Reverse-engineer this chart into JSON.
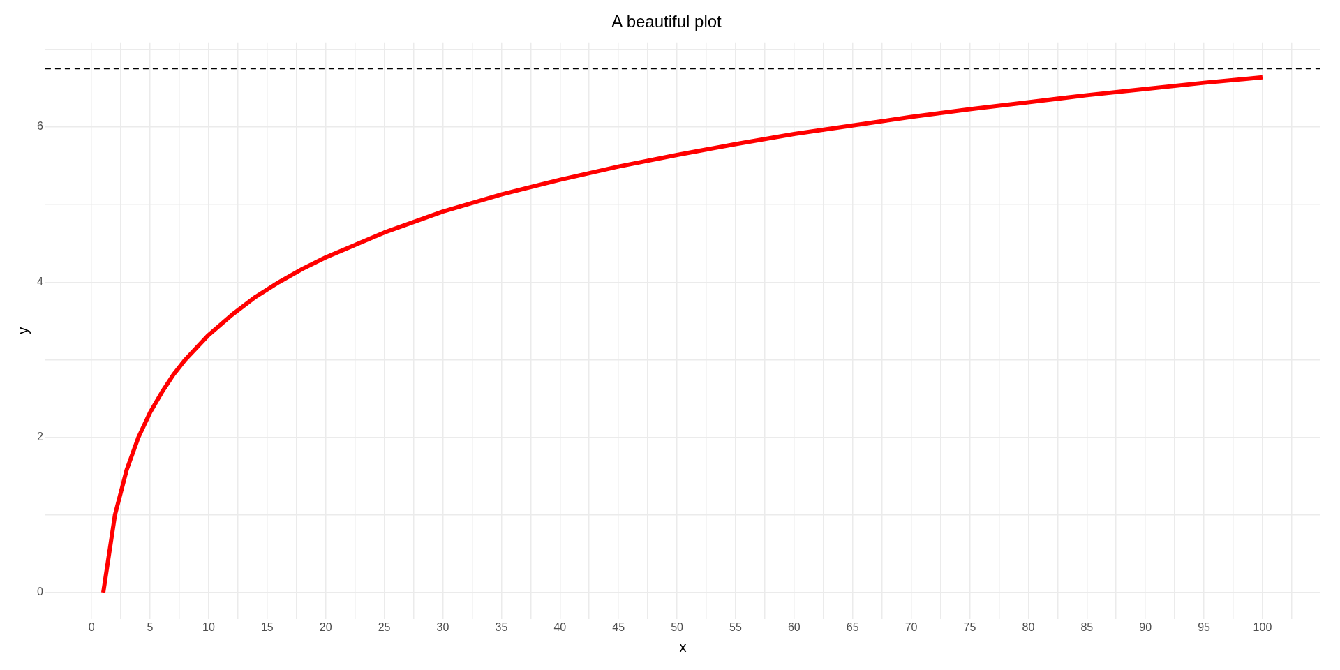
{
  "chart_data": {
    "type": "line",
    "title": "A beautiful plot",
    "xlabel": "x",
    "ylabel": "y",
    "x": [
      1,
      2,
      3,
      4,
      5,
      6,
      7,
      8,
      10,
      12,
      14,
      16,
      18,
      20,
      25,
      30,
      35,
      40,
      45,
      50,
      55,
      60,
      65,
      70,
      75,
      80,
      85,
      90,
      95,
      100
    ],
    "series": [
      {
        "color": "#ff0000",
        "values": [
          0,
          1,
          1.58,
          2,
          2.32,
          2.58,
          2.81,
          3,
          3.32,
          3.58,
          3.81,
          4,
          4.17,
          4.32,
          4.64,
          4.91,
          5.13,
          5.32,
          5.49,
          5.64,
          5.78,
          5.91,
          6.02,
          6.13,
          6.23,
          6.32,
          6.41,
          6.49,
          6.57,
          6.64
        ]
      }
    ],
    "xlim": [
      -3.95,
      104.95
    ],
    "ylim": [
      -0.34,
      7.09
    ],
    "xticks": [
      0,
      {
        "value": 2.5,
        "label": null
      },
      5,
      {
        "value": 7.5,
        "label": null
      },
      10,
      {
        "value": 12.5,
        "label": null
      },
      15,
      {
        "value": 17.5,
        "label": null
      },
      20,
      {
        "value": 22.5,
        "label": null
      },
      25,
      {
        "value": 27.5,
        "label": null
      },
      30,
      {
        "value": 32.5,
        "label": null
      },
      35,
      {
        "value": 37.5,
        "label": null
      },
      40,
      {
        "value": 42.5,
        "label": null
      },
      45,
      {
        "value": 47.5,
        "label": null
      },
      50,
      {
        "value": 52.5,
        "label": null
      },
      55,
      {
        "value": 57.5,
        "label": null
      },
      60,
      {
        "value": 62.5,
        "label": null
      },
      65,
      {
        "value": 67.5,
        "label": null
      },
      70,
      {
        "value": 72.5,
        "label": null
      },
      75,
      {
        "value": 77.5,
        "label": null
      },
      80,
      {
        "value": 82.5,
        "label": null
      },
      85,
      {
        "value": 87.5,
        "label": null
      },
      90,
      {
        "value": 92.5,
        "label": null
      },
      95,
      {
        "value": 97.5,
        "label": null
      },
      100,
      {
        "value": 102.5,
        "label": null
      }
    ],
    "yticks": [
      0,
      {
        "value": 1,
        "label": null
      },
      2,
      {
        "value": 3,
        "label": null
      },
      4,
      {
        "value": 5,
        "label": null
      },
      6,
      {
        "value": 7,
        "label": null
      }
    ],
    "ref_lines": [
      {
        "axis": "y",
        "value": 6.75,
        "label": null,
        "color": "#000000",
        "line_style": "dashed"
      }
    ],
    "grid": true,
    "legend": false,
    "marker": "none",
    "line_style": "solid"
  }
}
